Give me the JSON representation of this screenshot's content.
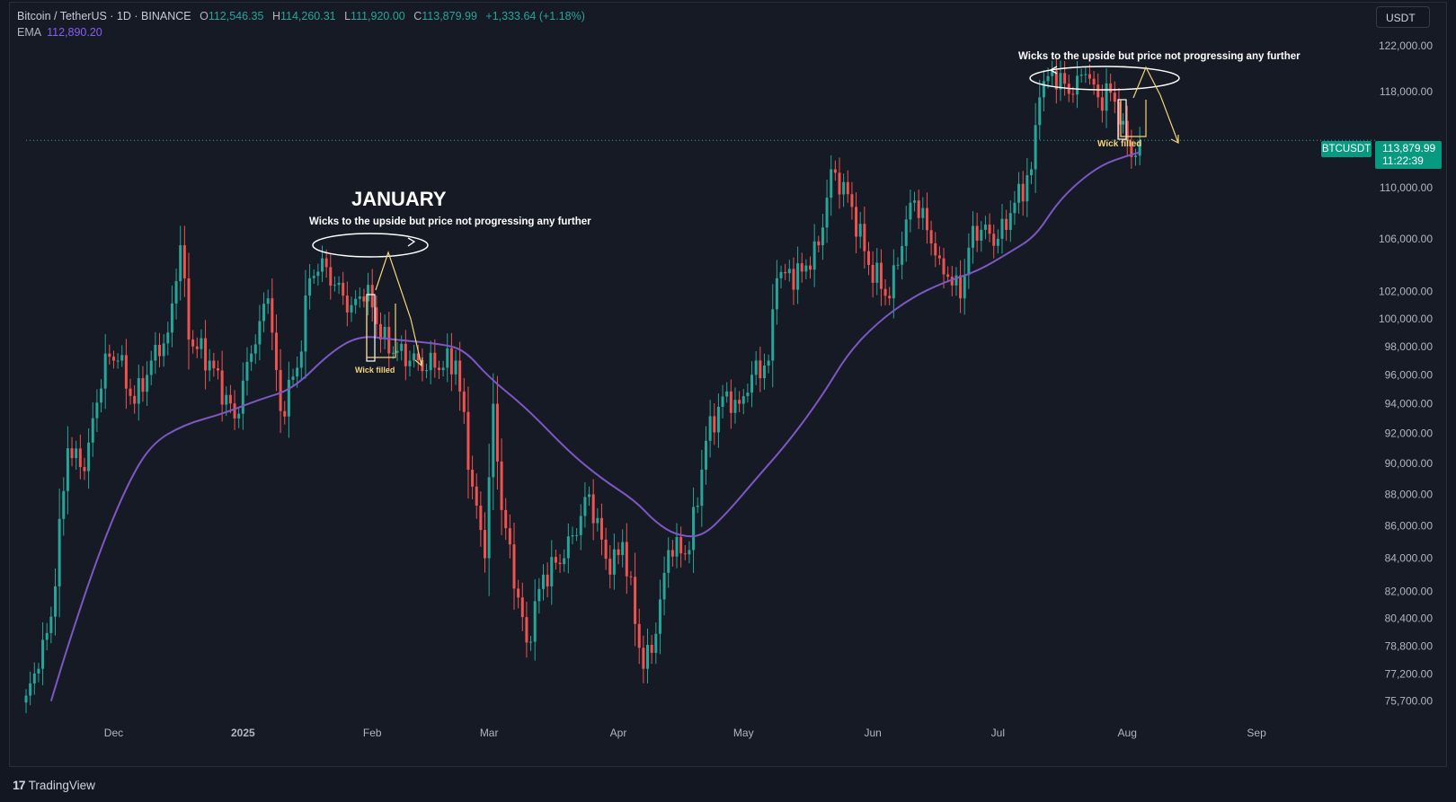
{
  "header": {
    "symbol_title": "Bitcoin / TetherUS · 1D · BINANCE",
    "ohlc": {
      "open_label": "O",
      "open": "112,546.35",
      "high_label": "H",
      "high": "114,260.31",
      "low_label": "L",
      "low": "111,920.00",
      "close_label": "C",
      "close": "113,879.99",
      "change": "+1,333.64 (+1.18%)"
    },
    "ema_label": "EMA",
    "ema_value": "112,890.20"
  },
  "toolbar": {
    "currency_label": "USDT"
  },
  "price_axis": {
    "symbol_tag": "BTCUSDT",
    "last_price": "113,879.99",
    "countdown": "11:22:39"
  },
  "footer": {
    "logo_glyph": "17",
    "brand": "TradingView"
  },
  "annotations": {
    "january_title": "JANUARY",
    "jan_note": "Wicks to the upside but price not progressing any further",
    "jan_wick": "Wick filled",
    "jul_note": "Wicks to the  upside but price not progressing any further",
    "jul_wick": "Wick filled"
  },
  "colors": {
    "background": "#161a25",
    "up": "#26a69a",
    "down": "#ef5350",
    "ema": "#7e57c2",
    "annotation_yellow": "#f3d57a",
    "annotation_white": "#ffffff"
  },
  "chart_data": {
    "type": "candlestick",
    "symbol": "BTCUSDT",
    "interval": "1D",
    "scale": "log",
    "y_ticks": [
      122000,
      118000,
      110000,
      106000,
      102000,
      100000,
      98000,
      96000,
      94000,
      92000,
      90000,
      88000,
      86000,
      84000,
      82000,
      80400,
      78800,
      77200,
      75700
    ],
    "y_tick_labels": [
      "122,000.00",
      "118,000.00",
      "110,000.00",
      "106,000.00",
      "102,000.00",
      "100,000.00",
      "98,000.00",
      "96,000.00",
      "94,000.00",
      "92,000.00",
      "90,000.00",
      "88,000.00",
      "86,000.00",
      "84,000.00",
      "82,000.00",
      "80,400.00",
      "78,800.00",
      "77,200.00",
      "75,700.00"
    ],
    "ylim": [
      74600,
      123600
    ],
    "x_ticks": [
      {
        "label": "Dec",
        "date": "2024-12-01"
      },
      {
        "label": "2025",
        "date": "2025-01-01"
      },
      {
        "label": "Feb",
        "date": "2025-02-01"
      },
      {
        "label": "Mar",
        "date": "2025-03-01"
      },
      {
        "label": "Apr",
        "date": "2025-04-01"
      },
      {
        "label": "May",
        "date": "2025-05-01"
      },
      {
        "label": "Jun",
        "date": "2025-06-01"
      },
      {
        "label": "Jul",
        "date": "2025-07-01"
      },
      {
        "label": "Aug",
        "date": "2025-08-01"
      },
      {
        "label": "Sep",
        "date": "2025-09-01"
      }
    ],
    "xlim": [
      "2024-11-10",
      "2025-09-18"
    ],
    "price_anchors": [
      {
        "date": "2024-11-10",
        "close": 76000
      },
      {
        "date": "2024-11-13",
        "close": 77500
      },
      {
        "date": "2024-11-16",
        "close": 80500
      },
      {
        "date": "2024-11-20",
        "close": 91000
      },
      {
        "date": "2024-11-24",
        "close": 89500
      },
      {
        "date": "2024-11-29",
        "close": 97500
      },
      {
        "date": "2024-12-02",
        "close": 97000
      },
      {
        "date": "2024-12-06",
        "close": 94000
      },
      {
        "date": "2024-12-10",
        "close": 97000
      },
      {
        "date": "2024-12-14",
        "close": 99000
      },
      {
        "date": "2024-12-17",
        "close": 105500
      },
      {
        "date": "2024-12-19",
        "close": 98500
      },
      {
        "date": "2024-12-24",
        "close": 97000
      },
      {
        "date": "2024-12-30",
        "close": 93000
      },
      {
        "date": "2025-01-03",
        "close": 97500
      },
      {
        "date": "2025-01-07",
        "close": 101500
      },
      {
        "date": "2025-01-10",
        "close": 93500
      },
      {
        "date": "2025-01-14",
        "close": 96500
      },
      {
        "date": "2025-01-17",
        "close": 103000
      },
      {
        "date": "2025-01-20",
        "close": 104500
      },
      {
        "date": "2025-01-23",
        "close": 102500
      },
      {
        "date": "2025-01-27",
        "close": 101000
      },
      {
        "date": "2025-01-31",
        "close": 102500
      },
      {
        "date": "2025-02-03",
        "close": 98500
      },
      {
        "date": "2025-02-10",
        "close": 97000
      },
      {
        "date": "2025-02-16",
        "close": 96500
      },
      {
        "date": "2025-02-21",
        "close": 97000
      },
      {
        "date": "2025-02-25",
        "close": 88500
      },
      {
        "date": "2025-02-28",
        "close": 84000
      },
      {
        "date": "2025-03-02",
        "close": 94000
      },
      {
        "date": "2025-03-04",
        "close": 87000
      },
      {
        "date": "2025-03-10",
        "close": 79000
      },
      {
        "date": "2025-03-14",
        "close": 83000
      },
      {
        "date": "2025-03-19",
        "close": 84000
      },
      {
        "date": "2025-03-25",
        "close": 88000
      },
      {
        "date": "2025-03-30",
        "close": 83000
      },
      {
        "date": "2025-04-02",
        "close": 85000
      },
      {
        "date": "2025-04-07",
        "close": 77500
      },
      {
        "date": "2025-04-10",
        "close": 79500
      },
      {
        "date": "2025-04-13",
        "close": 84500
      },
      {
        "date": "2025-04-18",
        "close": 84500
      },
      {
        "date": "2025-04-22",
        "close": 91500
      },
      {
        "date": "2025-04-26",
        "close": 94500
      },
      {
        "date": "2025-04-30",
        "close": 94000
      },
      {
        "date": "2025-05-03",
        "close": 96000
      },
      {
        "date": "2025-05-07",
        "close": 97000
      },
      {
        "date": "2025-05-09",
        "close": 103000
      },
      {
        "date": "2025-05-15",
        "close": 103500
      },
      {
        "date": "2025-05-19",
        "close": 105500
      },
      {
        "date": "2025-05-22",
        "close": 111500
      },
      {
        "date": "2025-05-26",
        "close": 109500
      },
      {
        "date": "2025-05-31",
        "close": 104000
      },
      {
        "date": "2025-06-05",
        "close": 101500
      },
      {
        "date": "2025-06-09",
        "close": 107500
      },
      {
        "date": "2025-06-11",
        "close": 109000
      },
      {
        "date": "2025-06-17",
        "close": 104500
      },
      {
        "date": "2025-06-22",
        "close": 101500
      },
      {
        "date": "2025-06-25",
        "close": 107000
      },
      {
        "date": "2025-07-01",
        "close": 106000
      },
      {
        "date": "2025-07-04",
        "close": 108000
      },
      {
        "date": "2025-07-09",
        "close": 111500
      },
      {
        "date": "2025-07-11",
        "close": 117500
      },
      {
        "date": "2025-07-14",
        "close": 119800
      },
      {
        "date": "2025-07-18",
        "close": 117800
      },
      {
        "date": "2025-07-22",
        "close": 119500
      },
      {
        "date": "2025-07-25",
        "close": 117500
      },
      {
        "date": "2025-07-28",
        "close": 117900
      },
      {
        "date": "2025-07-31",
        "close": 115500
      },
      {
        "date": "2025-08-02",
        "close": 112500
      },
      {
        "date": "2025-08-04",
        "close": 113880
      }
    ],
    "ema_anchors": [
      {
        "date": "2024-11-16",
        "value": 75700
      },
      {
        "date": "2024-11-20",
        "value": 78800
      },
      {
        "date": "2024-11-27",
        "value": 84000
      },
      {
        "date": "2024-12-04",
        "value": 88500
      },
      {
        "date": "2024-12-10",
        "value": 91300
      },
      {
        "date": "2024-12-18",
        "value": 92600
      },
      {
        "date": "2024-12-27",
        "value": 93300
      },
      {
        "date": "2025-01-05",
        "value": 94300
      },
      {
        "date": "2025-01-13",
        "value": 95000
      },
      {
        "date": "2025-01-22",
        "value": 97600
      },
      {
        "date": "2025-01-29",
        "value": 98800
      },
      {
        "date": "2025-02-06",
        "value": 98500
      },
      {
        "date": "2025-02-17",
        "value": 98200
      },
      {
        "date": "2025-02-23",
        "value": 97800
      },
      {
        "date": "2025-03-01",
        "value": 95800
      },
      {
        "date": "2025-03-10",
        "value": 93700
      },
      {
        "date": "2025-03-20",
        "value": 90800
      },
      {
        "date": "2025-03-28",
        "value": 89000
      },
      {
        "date": "2025-04-05",
        "value": 87600
      },
      {
        "date": "2025-04-10",
        "value": 86200
      },
      {
        "date": "2025-04-15",
        "value": 85400
      },
      {
        "date": "2025-04-21",
        "value": 85300
      },
      {
        "date": "2025-04-27",
        "value": 86800
      },
      {
        "date": "2025-05-04",
        "value": 89000
      },
      {
        "date": "2025-05-12",
        "value": 91500
      },
      {
        "date": "2025-05-20",
        "value": 94600
      },
      {
        "date": "2025-05-26",
        "value": 97500
      },
      {
        "date": "2025-06-02",
        "value": 99700
      },
      {
        "date": "2025-06-10",
        "value": 101500
      },
      {
        "date": "2025-06-18",
        "value": 102700
      },
      {
        "date": "2025-06-26",
        "value": 103500
      },
      {
        "date": "2025-07-04",
        "value": 105000
      },
      {
        "date": "2025-07-10",
        "value": 106200
      },
      {
        "date": "2025-07-15",
        "value": 108700
      },
      {
        "date": "2025-07-20",
        "value": 110400
      },
      {
        "date": "2025-07-26",
        "value": 111900
      },
      {
        "date": "2025-08-01",
        "value": 112600
      },
      {
        "date": "2025-08-04",
        "value": 112890
      }
    ]
  }
}
